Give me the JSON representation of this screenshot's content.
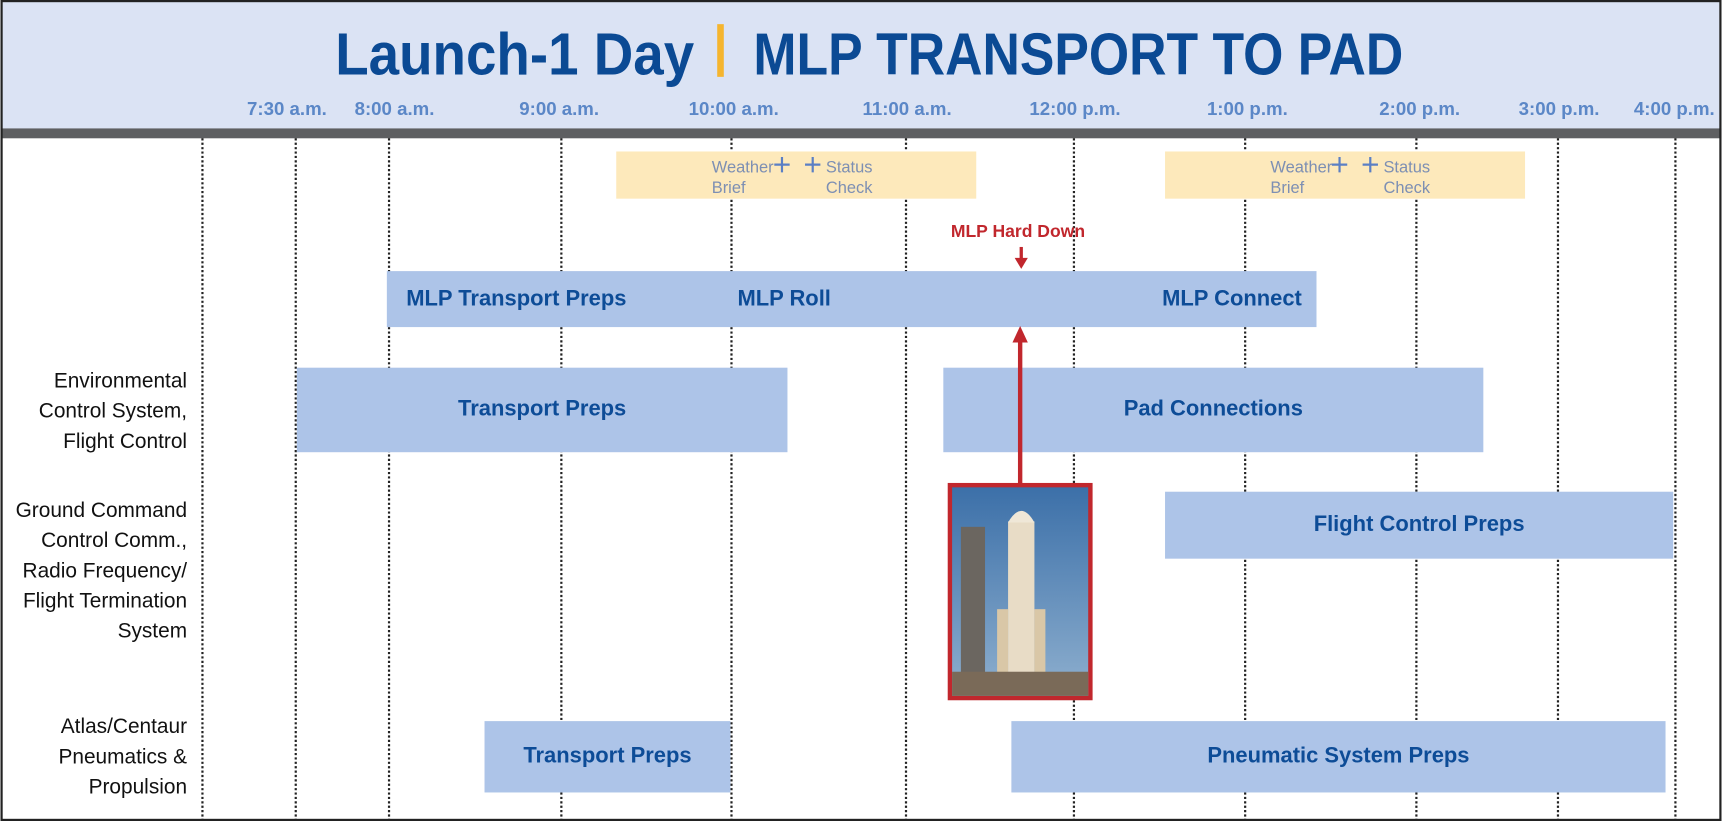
{
  "header": {
    "title_left": "Launch-1 Day",
    "title_right": "MLP TRANSPORT TO PAD"
  },
  "times": [
    "7:30 a.m.",
    "8:00 a.m.",
    "9:00 a.m.",
    "10:00 a.m.",
    "11:00 a.m.",
    "12:00 p.m.",
    "1:00 p.m.",
    "2:00 p.m.",
    "3:00 p.m.",
    "4:00 p.m."
  ],
  "checks": [
    {
      "left": [
        "Weather",
        "Brief"
      ],
      "right": [
        "Status",
        "Check"
      ]
    },
    {
      "left": [
        "Weather",
        "Brief"
      ],
      "right": [
        "Status",
        "Check"
      ]
    }
  ],
  "milestone": "MLP Hard Down",
  "mlp_bar": [
    "MLP Transport Preps",
    "MLP Roll",
    "MLP Connect"
  ],
  "rows": [
    {
      "label": [
        "Environmental",
        "Control System,",
        "Flight Control"
      ],
      "bars": [
        "Transport Preps",
        "Pad Connections"
      ]
    },
    {
      "label": [
        "Ground Command",
        "Control Comm.,",
        "Radio Frequency/",
        "Flight Termination",
        "System"
      ],
      "bars": [
        "Flight Control Preps"
      ]
    },
    {
      "label": [
        "Atlas/Centaur",
        "Pneumatics &",
        "Propulsion"
      ],
      "bars": [
        "Transport Preps",
        "Pneumatic System Preps"
      ]
    }
  ]
}
